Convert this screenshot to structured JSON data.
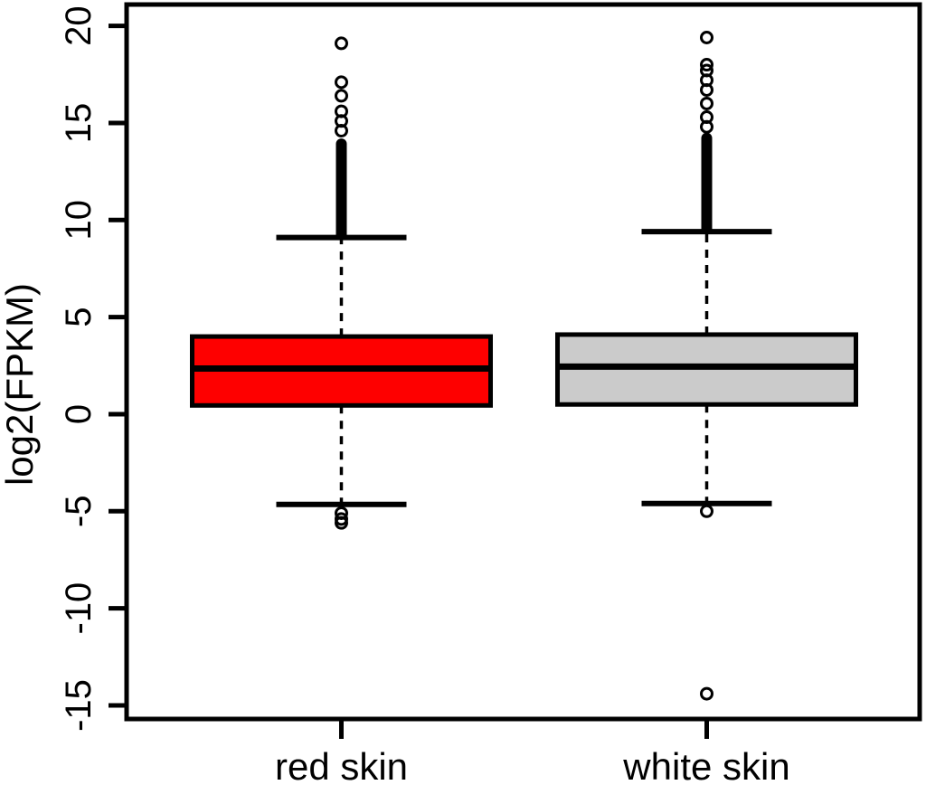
{
  "chart_data": {
    "type": "boxplot",
    "title": "",
    "xlabel": "",
    "ylabel": "log2(FPKM)",
    "yticks": [
      20,
      15,
      10,
      5,
      0,
      -5,
      -10,
      -15
    ],
    "ylim": [
      -15.7,
      21.1
    ],
    "grid": false,
    "legend": "none",
    "categories": [
      "red skin",
      "white skin"
    ],
    "groups": [
      {
        "label": "red skin",
        "fill": "#fe0000",
        "stats": {
          "q1": 0.45,
          "median": 2.35,
          "q3": 4.0,
          "whisker_low": -4.65,
          "whisker_high": 9.1
        },
        "outlier_dense_band_high": [
          9.1,
          14.2
        ],
        "outliers_high": [
          14.6,
          15.1,
          15.6,
          16.4,
          17.1,
          19.1
        ],
        "outliers_low": [
          -5.1,
          -5.4,
          -5.6
        ]
      },
      {
        "label": "white skin",
        "fill": "#cbcbcb",
        "stats": {
          "q1": 0.5,
          "median": 2.45,
          "q3": 4.1,
          "whisker_low": -4.6,
          "whisker_high": 9.4
        },
        "outlier_dense_band_high": [
          9.4,
          14.5
        ],
        "outliers_high": [
          14.8,
          15.3,
          16.0,
          16.7,
          17.2,
          17.7,
          18.0,
          19.4
        ],
        "outliers_low": [
          -5.0,
          -14.4
        ]
      }
    ],
    "colors": {
      "stroke": "#000000",
      "background": "#ffffff"
    }
  }
}
